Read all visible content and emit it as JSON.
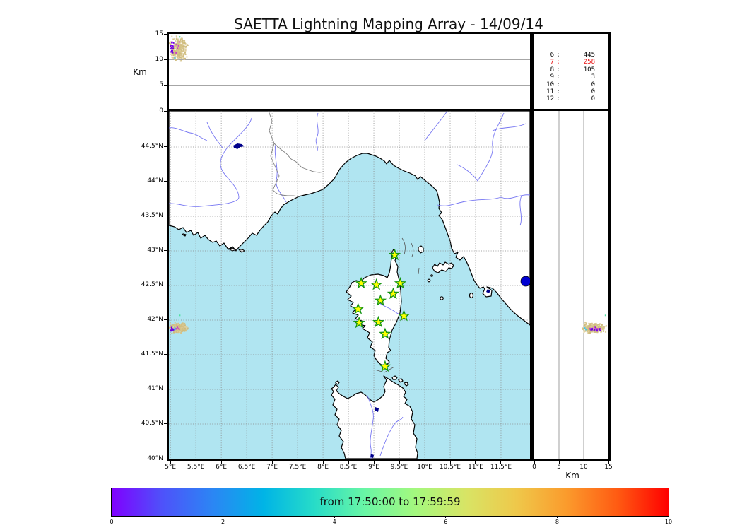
{
  "title": "SAETTA Lightning Mapping Array - 14/09/14",
  "labels": {
    "alt_axis_left": "Km",
    "alt_axis_bottom": "Km",
    "colorbar": "from 17:50:00 to 17:59:59"
  },
  "stats": {
    "rows": [
      {
        "n": "6",
        "sep": ":",
        "v": "445",
        "highlight": false
      },
      {
        "n": "7",
        "sep": ":",
        "v": "258",
        "highlight": true
      },
      {
        "n": "8",
        "sep": ":",
        "v": "105",
        "highlight": false
      },
      {
        "n": "9",
        "sep": ":",
        "v": "3",
        "highlight": false
      },
      {
        "n": "10",
        "sep": ":",
        "v": "0",
        "highlight": false
      },
      {
        "n": "11",
        "sep": ":",
        "v": "0",
        "highlight": false
      },
      {
        "n": "12",
        "sep": ":",
        "v": "0",
        "highlight": false
      }
    ]
  },
  "axes": {
    "map_x_ticks": [
      "5°E",
      "5.5°E",
      "6°E",
      "6.5°E",
      "7°E",
      "7.5°E",
      "8°E",
      "8.5°E",
      "9°E",
      "9.5°E",
      "10°E",
      "10.5°E",
      "11°E",
      "11.5°E"
    ],
    "map_y_ticks": [
      "44.5°N",
      "44°N",
      "43.5°N",
      "43°N",
      "42.5°N",
      "42°N",
      "41.5°N",
      "41°N",
      "40.5°N",
      "40°N"
    ],
    "top_alt_ticks": [
      "15",
      "10",
      "5",
      "0"
    ],
    "right_alt_ticks": [
      "0",
      "5",
      "10",
      "15"
    ],
    "colorbar_ticks": [
      "0",
      "2",
      "4",
      "6",
      "8",
      "10"
    ]
  },
  "colors": {
    "sea": "#b0e5f1",
    "land": "#ffffff",
    "coast": "#000000",
    "river": "#7575f2",
    "border": "#7e7e7e",
    "lake": "#00008b",
    "lake_bolsena": "#0000d2",
    "grid": "#888888",
    "star_fill": "#ffff00",
    "star_stroke": "#149414",
    "stat_highlight": "#e81010"
  },
  "chart_data": {
    "type": "scatter",
    "description": "Lightning Mapping Array composite plot: altitude vs longitude (top), plan-view map (center), altitude vs latitude (right), colorbar = time",
    "title": "SAETTA Lightning Mapping Array - 14/09/14",
    "lon_range_deg_e": [
      4.97,
      12.07
    ],
    "lat_range_deg_n": [
      40.0,
      45.02
    ],
    "alt_range_km": [
      0,
      15
    ],
    "alt_gridlines_km": [
      5,
      10
    ],
    "lon_tick_values": [
      5,
      5.5,
      6,
      6.5,
      7,
      7.5,
      8,
      8.5,
      9,
      9.5,
      10,
      10.5,
      11,
      11.5
    ],
    "lat_tick_values": [
      44.5,
      44,
      43.5,
      43,
      42.5,
      42,
      41.5,
      41,
      40.5,
      40
    ],
    "time_window": {
      "start": "17:50:00",
      "end": "17:59:59"
    },
    "colorbar": {
      "range": [
        0,
        10
      ],
      "tick_values": [
        0,
        2,
        4,
        6,
        8,
        10
      ],
      "gradient": [
        "#8000ff",
        "#4e52fa",
        "#2b86f4",
        "#00b4e6",
        "#27dcc8",
        "#69f6a5",
        "#a4f87e",
        "#d8e465",
        "#efc84a",
        "#fb9a2c",
        "#ff5a12",
        "#ff0000"
      ]
    },
    "source_counts": [
      {
        "channel": "6",
        "count": 445,
        "highlight": false
      },
      {
        "channel": "7",
        "count": 258,
        "highlight": true
      },
      {
        "channel": "8",
        "count": 105,
        "highlight": false
      },
      {
        "channel": "9",
        "count": 3,
        "highlight": false
      },
      {
        "channel": "10",
        "count": 0,
        "highlight": false
      },
      {
        "channel": "11",
        "count": 0,
        "highlight": false
      },
      {
        "channel": "12",
        "count": 0,
        "highlight": false
      }
    ],
    "stations_lon_lat": [
      [
        9.41,
        42.94
      ],
      [
        8.75,
        42.53
      ],
      [
        9.05,
        42.51
      ],
      [
        9.52,
        42.53
      ],
      [
        9.38,
        42.38
      ],
      [
        9.13,
        42.28
      ],
      [
        8.69,
        42.16
      ],
      [
        9.59,
        42.06
      ],
      [
        8.71,
        41.96
      ],
      [
        9.09,
        41.97
      ],
      [
        9.22,
        41.8
      ],
      [
        9.22,
        41.33
      ]
    ],
    "flash_cluster": {
      "location": "west edge of map near 5.2E 41.9N",
      "groups": [
        {
          "name": "main",
          "count": 340,
          "lon": [
            4.97,
            5.36
          ],
          "lat": [
            41.8,
            41.97
          ],
          "alt_km": [
            9.0,
            15.0
          ],
          "palette": [
            "#cdbb7c",
            "#d6c48c",
            "#dfce9c",
            "#d2bf82"
          ]
        },
        {
          "name": "early-purple",
          "count": 16,
          "lon": [
            4.97,
            5.09
          ],
          "lat": [
            41.83,
            41.91
          ],
          "alt_km": [
            10.5,
            14.8
          ],
          "palette": [
            "#7d00f0",
            "#6a00e0"
          ]
        },
        {
          "name": "magenta",
          "count": 5,
          "lon": [
            5.05,
            5.3
          ],
          "lat": [
            41.85,
            41.9
          ],
          "alt_km": [
            11.0,
            14.3
          ],
          "palette": [
            "#c840c8"
          ]
        },
        {
          "name": "cyan",
          "count": 2,
          "lon": [
            5.05,
            5.15
          ],
          "lat": [
            41.85,
            41.89
          ],
          "alt_km": [
            9.5,
            10.6
          ],
          "palette": [
            "#35c8f0"
          ]
        },
        {
          "name": "green",
          "count": 1,
          "lon": [
            5.18,
            5.2
          ],
          "lat": [
            42.05,
            42.08
          ],
          "alt_km": [
            14.2,
            14.5
          ],
          "palette": [
            "#50e0a0"
          ]
        }
      ]
    }
  }
}
